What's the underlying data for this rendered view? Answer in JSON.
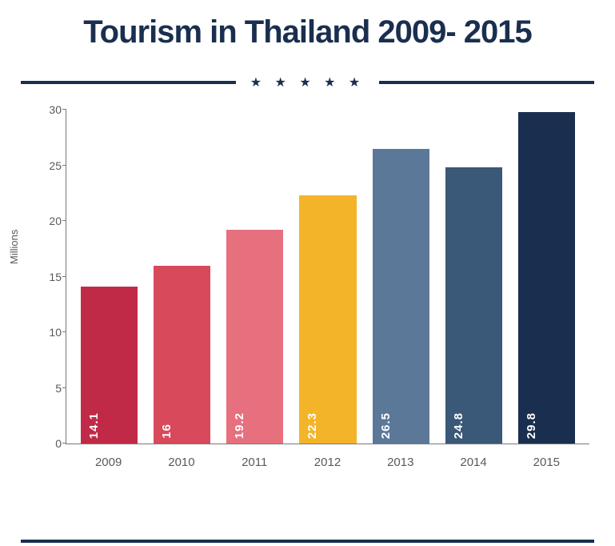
{
  "chart": {
    "type": "bar",
    "title": "Tourism in Thailand 2009- 2015",
    "title_fontsize": 40,
    "title_color": "#1a2f4f",
    "ylabel": "Millions",
    "label_fontsize": 13,
    "categories": [
      "2009",
      "2010",
      "2011",
      "2012",
      "2013",
      "2014",
      "2015"
    ],
    "values": [
      14.1,
      16,
      19.2,
      22.3,
      26.5,
      24.8,
      29.8
    ],
    "bar_colors": [
      "#c12a47",
      "#d84a5b",
      "#e6707e",
      "#f4b429",
      "#5b7899",
      "#3a5878",
      "#1a2f4f"
    ],
    "value_label_color": "#ffffff",
    "ylim": [
      0,
      30
    ],
    "ytick_step": 5,
    "yticks": [
      0,
      5,
      10,
      15,
      20,
      25,
      30
    ],
    "xtick_fontsize": 15,
    "ytick_fontsize": 14,
    "tick_color": "#5a5a5a",
    "axis_color": "#777777",
    "background_color": "#ffffff",
    "bar_width": 0.78,
    "star_count": 5,
    "star_glyph": "★",
    "divider_color": "#1a2f4f",
    "divider_thickness": 4
  }
}
